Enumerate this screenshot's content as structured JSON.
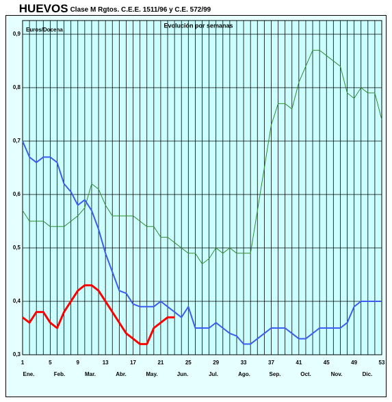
{
  "chart_data": {
    "type": "line",
    "title": "HUEVOS",
    "subtitle": "Clase M Rgtos. C.E.E. 1511/96 y C.E. 572/99",
    "plot_title": "Evolución por semanas",
    "y_label": "Euros/Docena",
    "x": [
      1,
      2,
      3,
      4,
      5,
      6,
      7,
      8,
      9,
      10,
      11,
      12,
      13,
      14,
      15,
      16,
      17,
      18,
      19,
      20,
      21,
      22,
      23,
      24,
      25,
      26,
      27,
      28,
      29,
      30,
      31,
      32,
      33,
      34,
      35,
      36,
      37,
      38,
      39,
      40,
      41,
      42,
      43,
      44,
      45,
      46,
      47,
      48,
      49,
      50,
      51,
      52,
      53
    ],
    "xlim": [
      1,
      53
    ],
    "xticks": [
      1,
      5,
      9,
      13,
      17,
      21,
      25,
      29,
      33,
      37,
      41,
      45,
      49,
      53
    ],
    "months": [
      "Ene.",
      "Feb.",
      "Mar.",
      "Abr.",
      "May.",
      "Jun.",
      "Jul.",
      "Ago.",
      "Sep.",
      "Oct.",
      "Nov.",
      "Dic."
    ],
    "ylim": [
      0.3,
      0.9
    ],
    "yticks": [
      {
        "value": 0.3,
        "label": "0,3"
      },
      {
        "value": 0.4,
        "label": "0,4"
      },
      {
        "value": 0.5,
        "label": "0,5"
      },
      {
        "value": 0.6,
        "label": "0,6"
      },
      {
        "value": 0.7,
        "label": "0,7"
      },
      {
        "value": 0.8,
        "label": "0,8"
      },
      {
        "value": 0.9,
        "label": "0,9"
      }
    ],
    "grid": true,
    "series": [
      {
        "color": "#2e8b2e",
        "width": 1,
        "values": [
          0.57,
          0.55,
          0.55,
          0.55,
          0.54,
          0.54,
          0.54,
          0.55,
          0.56,
          0.575,
          0.62,
          0.61,
          0.58,
          0.56,
          0.56,
          0.56,
          0.56,
          0.55,
          0.54,
          0.54,
          0.52,
          0.52,
          0.51,
          0.5,
          0.49,
          0.49,
          0.47,
          0.48,
          0.5,
          0.49,
          0.5,
          0.49,
          0.49,
          0.49,
          0.57,
          0.65,
          0.73,
          0.77,
          0.77,
          0.76,
          0.81,
          0.84,
          0.87,
          0.87,
          0.86,
          0.85,
          0.84,
          0.79,
          0.78,
          0.8,
          0.79,
          0.79,
          0.74
        ]
      },
      {
        "color": "#3a5cf0",
        "width": 2,
        "values": [
          0.7,
          0.67,
          0.66,
          0.67,
          0.67,
          0.66,
          0.62,
          0.605,
          0.58,
          0.59,
          0.57,
          0.535,
          0.49,
          0.455,
          0.42,
          0.415,
          0.395,
          0.39,
          0.39,
          0.39,
          0.4,
          0.39,
          0.38,
          0.37,
          0.39,
          0.35,
          0.35,
          0.35,
          0.36,
          0.35,
          0.34,
          0.335,
          0.32,
          0.32,
          0.33,
          0.34,
          0.35,
          0.35,
          0.35,
          0.34,
          0.33,
          0.33,
          0.34,
          0.35,
          0.35,
          0.35,
          0.35,
          0.36,
          0.39,
          0.4,
          0.4,
          0.4,
          0.4
        ]
      },
      {
        "color": "#ff0000",
        "width": 3,
        "values": [
          0.37,
          0.36,
          0.38,
          0.38,
          0.36,
          0.35,
          0.38,
          0.4,
          0.42,
          0.43,
          0.43,
          0.42,
          0.4,
          0.38,
          0.36,
          0.34,
          0.33,
          0.32,
          0.32,
          0.35,
          0.36,
          0.37,
          0.37,
          null,
          null,
          null,
          null,
          null,
          null,
          null,
          null,
          null,
          null,
          null,
          null,
          null,
          null,
          null,
          null,
          null,
          null,
          null,
          null,
          null,
          null,
          null,
          null,
          null,
          null,
          null,
          null,
          null,
          null
        ]
      }
    ]
  }
}
